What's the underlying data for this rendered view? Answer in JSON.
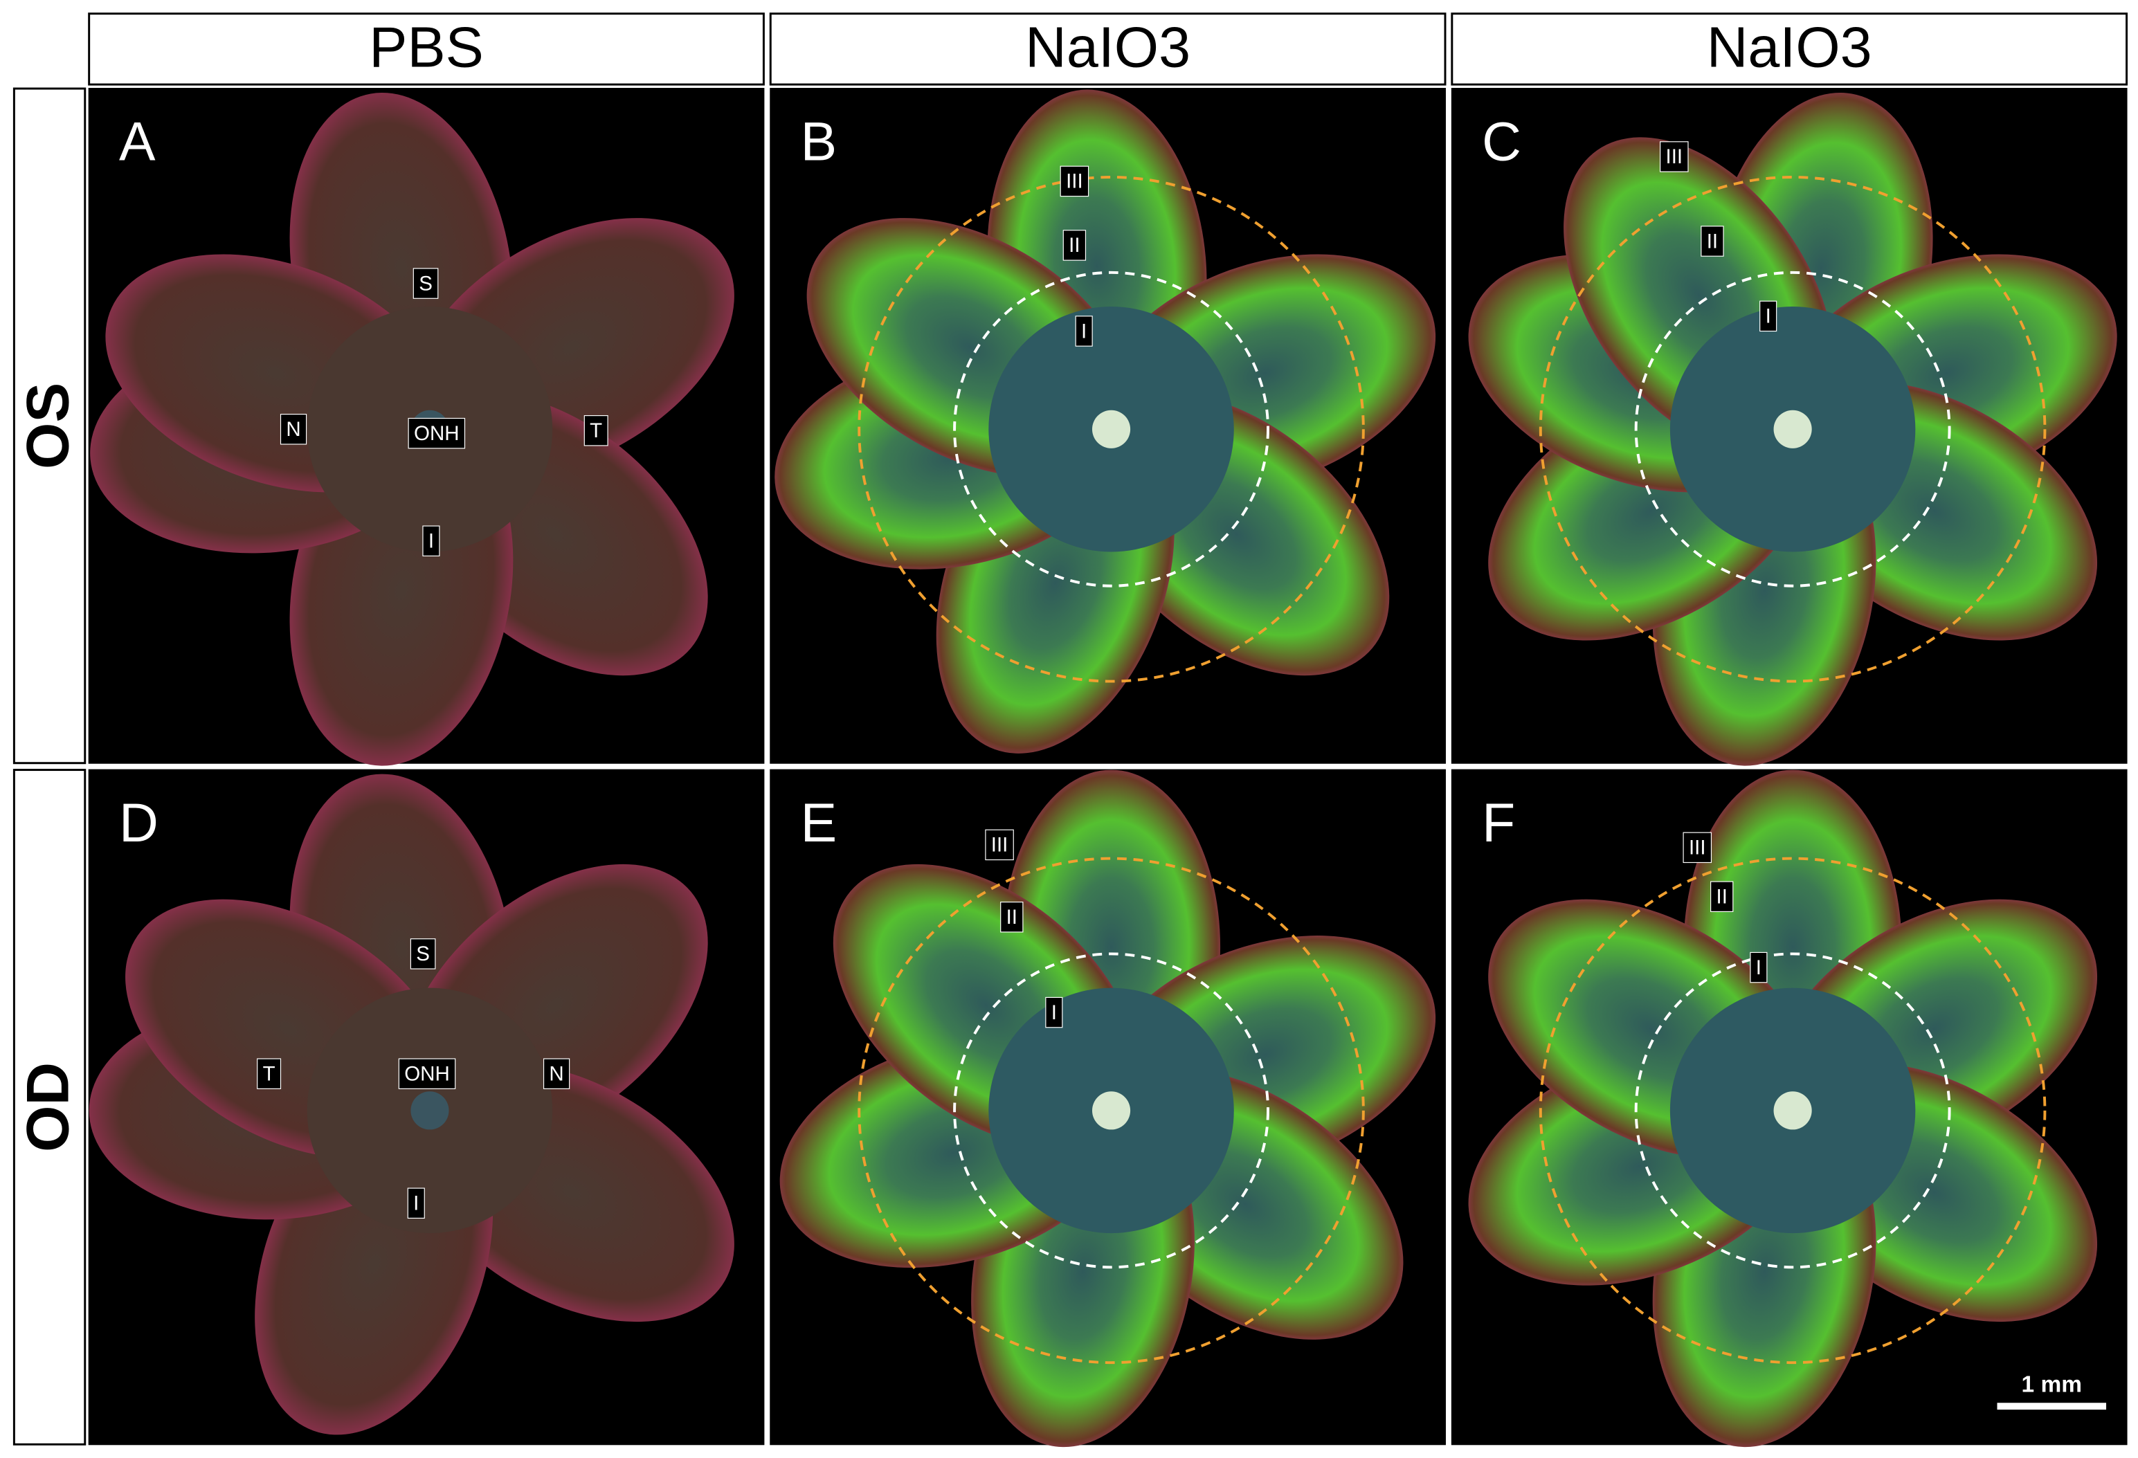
{
  "columns": [
    "PBS",
    "NaIO3",
    "NaIO3"
  ],
  "rows": [
    "OS",
    "OD"
  ],
  "panels": [
    {
      "letter": "A",
      "labels": [
        "S",
        "N",
        "ONH",
        "T",
        "I"
      ]
    },
    {
      "letter": "B",
      "labels": [
        "III",
        "II",
        "I"
      ]
    },
    {
      "letter": "C",
      "labels": [
        "III",
        "II",
        "I"
      ]
    },
    {
      "letter": "D",
      "labels": [
        "S",
        "T",
        "ONH",
        "N",
        "I"
      ]
    },
    {
      "letter": "E",
      "labels": [
        "III",
        "II",
        "I"
      ]
    },
    {
      "letter": "F",
      "labels": [
        "III",
        "II",
        "I"
      ]
    }
  ],
  "scale_bar": "1 mm"
}
